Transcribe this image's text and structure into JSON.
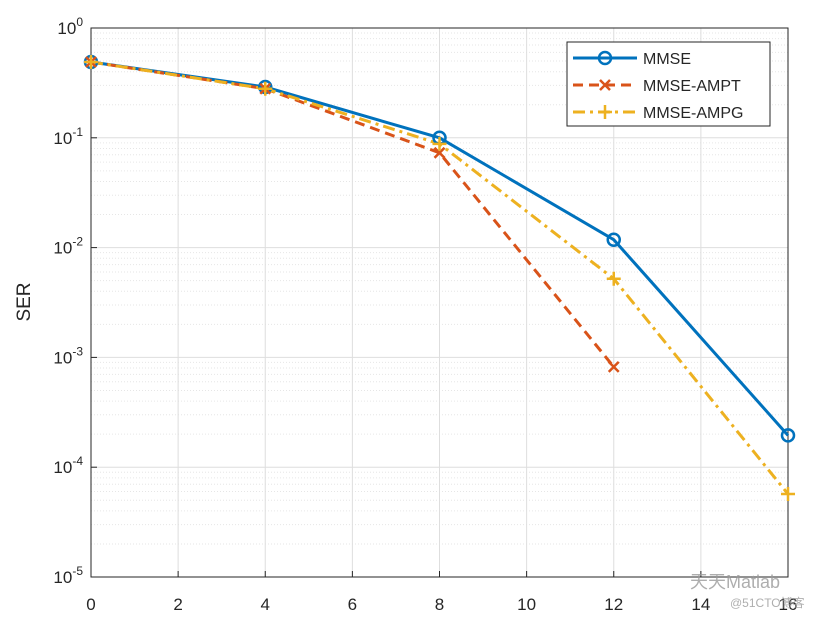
{
  "chart_data": {
    "type": "line",
    "ylabel": "SER",
    "log_y": true,
    "grid": true,
    "minor_grid": true,
    "legend_position": "upper right",
    "x": [
      0,
      4,
      8,
      12,
      16
    ],
    "series": [
      {
        "name": "MMSE",
        "color": "#0072bd",
        "linestyle": "solid",
        "marker": "o",
        "values": [
          0.49,
          0.29,
          0.1,
          0.0118,
          0.000195
        ]
      },
      {
        "name": "MMSE-AMPT",
        "color": "#d95319",
        "linestyle": "dashed",
        "marker": "x",
        "values": [
          0.49,
          0.28,
          0.073,
          0.00082,
          null
        ]
      },
      {
        "name": "MMSE-AMPG",
        "color": "#edb120",
        "linestyle": "dashdot",
        "marker": "+",
        "values": [
          0.49,
          0.28,
          0.088,
          0.0052,
          5.7e-05
        ]
      }
    ],
    "xlim": [
      0,
      16
    ],
    "xticks": [
      0,
      2,
      4,
      6,
      8,
      10,
      12,
      14,
      16
    ],
    "ylim": [
      1e-05,
      1
    ],
    "yticks": [
      {
        "value": 1e-05,
        "label": "10^-5"
      },
      {
        "value": 0.0001,
        "label": "10^-4"
      },
      {
        "value": 0.001,
        "label": "10^-3"
      },
      {
        "value": 0.01,
        "label": "10^-2"
      },
      {
        "value": 0.1,
        "label": "10^-1"
      },
      {
        "value": 1,
        "label": "10^0"
      }
    ],
    "watermark": [
      "天天Matlab",
      "@51CTO博客"
    ]
  }
}
